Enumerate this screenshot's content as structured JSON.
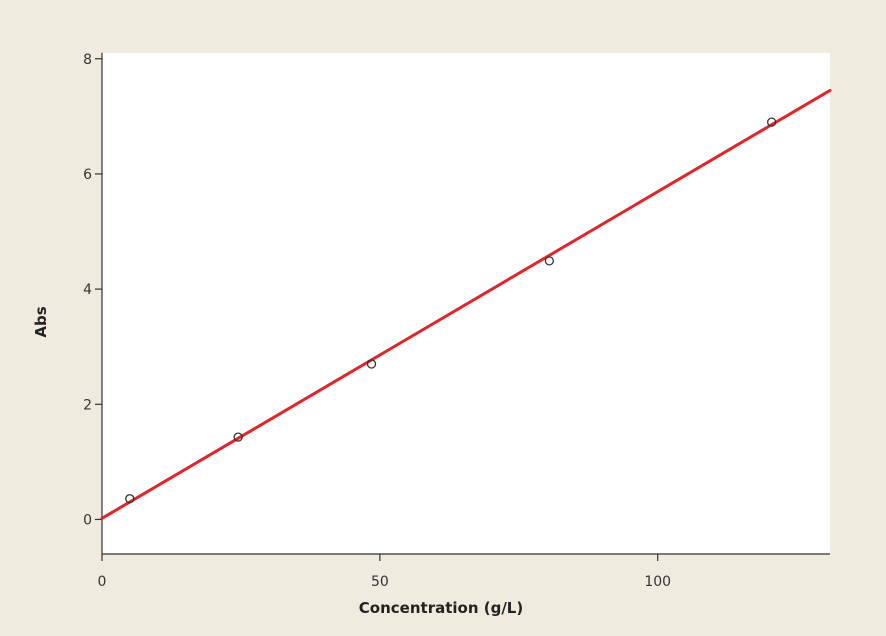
{
  "chart_data": {
    "type": "scatter",
    "title": "",
    "xlabel": "Concentration (g/L)",
    "ylabel": "Abs",
    "xlim": [
      0,
      131
    ],
    "ylim": [
      -0.6,
      8.1
    ],
    "xticks": [
      0,
      50,
      100
    ],
    "xtick_labels": [
      "0",
      "50",
      "100"
    ],
    "yticks": [
      0,
      2,
      4,
      6,
      8
    ],
    "ytick_labels": [
      "0",
      "2",
      "4",
      "6",
      "8"
    ],
    "grid": false,
    "legend": "none",
    "series": [
      {
        "type": "scatter",
        "x": [
          5,
          24.5,
          48.5,
          80.5,
          120.5
        ],
        "y": [
          0.36,
          1.43,
          2.7,
          4.49,
          6.9
        ]
      },
      {
        "type": "line",
        "x": [
          0,
          131
        ],
        "y": [
          0.02,
          7.45
        ]
      }
    ],
    "colors": {
      "background": "#efebdf",
      "plot_area": "#ffffff",
      "fit_line": "#e0262b",
      "marker_stroke": "#333333",
      "axis": "#333333"
    }
  }
}
